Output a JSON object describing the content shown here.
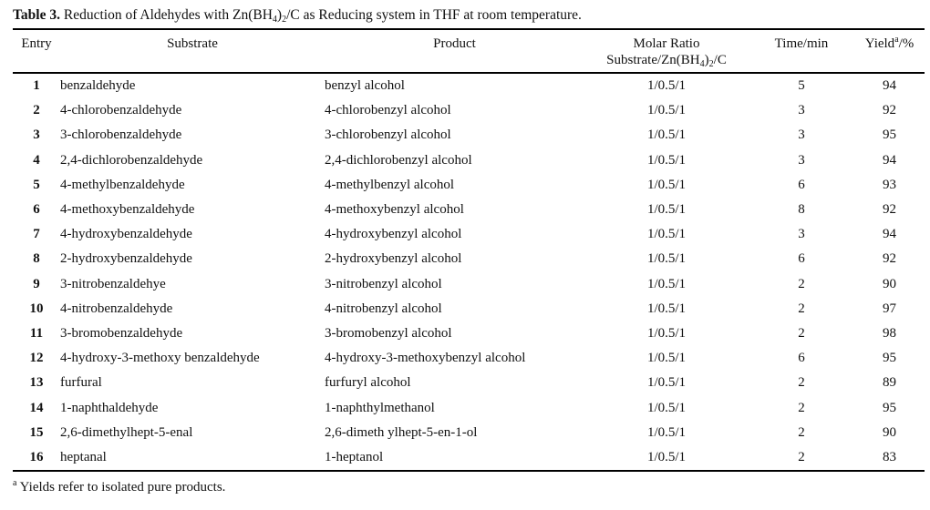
{
  "title": {
    "label": "Table 3.",
    "part1": " Reduction of Aldehydes with Zn(BH",
    "sub1": "4",
    "part2": ")",
    "sub2": "2",
    "part3": "/C as Reducing system in THF at room temperature."
  },
  "table": {
    "headers": {
      "entry": "Entry",
      "substrate": "Substrate",
      "product": "Product",
      "molar_ratio_line1": "Molar Ratio",
      "molar_ratio_line2_part1": "Substrate/Zn(BH",
      "molar_ratio_line2_sub1": "4",
      "molar_ratio_line2_part2": ")",
      "molar_ratio_line2_sub2": "2",
      "molar_ratio_line2_part3": "/C",
      "time": "Time/min",
      "yield_part1": "Yield",
      "yield_sup": "a",
      "yield_part2": "/%"
    },
    "rows": [
      {
        "entry": "1",
        "substrate": "benzaldehyde",
        "product": "benzyl alcohol",
        "molar_ratio": "1/0.5/1",
        "time": "5",
        "yield": "94"
      },
      {
        "entry": "2",
        "substrate": "4-chlorobenzaldehyde",
        "product": "4-chlorobenzyl alcohol",
        "molar_ratio": "1/0.5/1",
        "time": "3",
        "yield": "92"
      },
      {
        "entry": "3",
        "substrate": "3-chlorobenzaldehyde",
        "product": "3-chlorobenzyl alcohol",
        "molar_ratio": "1/0.5/1",
        "time": "3",
        "yield": "95"
      },
      {
        "entry": "4",
        "substrate": "2,4-dichlorobenzaldehyde",
        "product": "2,4-dichlorobenzyl alcohol",
        "molar_ratio": "1/0.5/1",
        "time": "3",
        "yield": "94"
      },
      {
        "entry": "5",
        "substrate": "4-methylbenzaldehyde",
        "product": "4-methylbenzyl alcohol",
        "molar_ratio": "1/0.5/1",
        "time": "6",
        "yield": "93"
      },
      {
        "entry": "6",
        "substrate": "4-methoxybenzaldehyde",
        "product": "4-methoxybenzyl alcohol",
        "molar_ratio": "1/0.5/1",
        "time": "8",
        "yield": "92"
      },
      {
        "entry": "7",
        "substrate": "4-hydroxybenzaldehyde",
        "product": "4-hydroxybenzyl alcohol",
        "molar_ratio": "1/0.5/1",
        "time": "3",
        "yield": "94"
      },
      {
        "entry": "8",
        "substrate": "2-hydroxybenzaldehyde",
        "product": "2-hydroxybenzyl alcohol",
        "molar_ratio": "1/0.5/1",
        "time": "6",
        "yield": "92"
      },
      {
        "entry": "9",
        "substrate": "3-nitrobenzaldehye",
        "product": "3-nitrobenzyl alcohol",
        "molar_ratio": "1/0.5/1",
        "time": "2",
        "yield": "90"
      },
      {
        "entry": "10",
        "substrate": "4-nitrobenzaldehyde",
        "product": "4-nitrobenzyl alcohol",
        "molar_ratio": "1/0.5/1",
        "time": "2",
        "yield": "97"
      },
      {
        "entry": "11",
        "substrate": "3-bromobenzaldehyde",
        "product": "3-bromobenzyl alcohol",
        "molar_ratio": "1/0.5/1",
        "time": "2",
        "yield": "98"
      },
      {
        "entry": "12",
        "substrate": "4-hydroxy-3-methoxy benzaldehyde",
        "product": "4-hydroxy-3-methoxybenzyl alcohol",
        "molar_ratio": "1/0.5/1",
        "time": "6",
        "yield": "95"
      },
      {
        "entry": "13",
        "substrate": "furfural",
        "product": "furfuryl alcohol",
        "molar_ratio": "1/0.5/1",
        "time": "2",
        "yield": "89"
      },
      {
        "entry": "14",
        "substrate": "1-naphthaldehyde",
        "product": "1-naphthylmethanol",
        "molar_ratio": "1/0.5/1",
        "time": "2",
        "yield": "95"
      },
      {
        "entry": "15",
        "substrate": "2,6-dimethylhept-5-enal",
        "product": "2,6-dimeth ylhept-5-en-1-ol",
        "molar_ratio": "1/0.5/1",
        "time": "2",
        "yield": "90"
      },
      {
        "entry": "16",
        "substrate": "heptanal",
        "product": "1-heptanol",
        "molar_ratio": "1/0.5/1",
        "time": "2",
        "yield": "83"
      }
    ]
  },
  "footnote": {
    "sup": "a",
    "text": " Yields refer to isolated pure products."
  }
}
